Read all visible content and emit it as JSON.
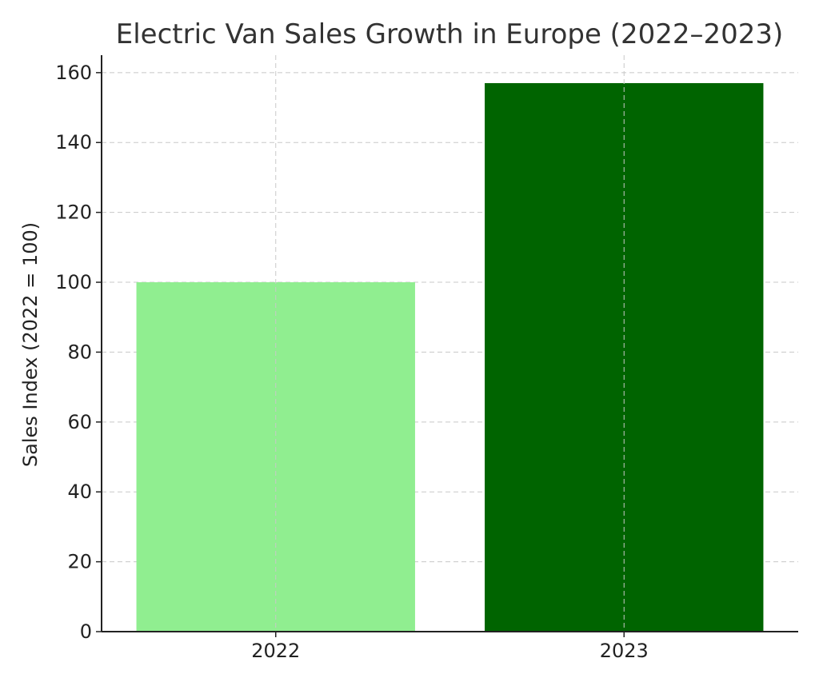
{
  "chart_data": {
    "type": "bar",
    "title": "Electric Van Sales Growth in Europe (2022–2023)",
    "xlabel": "",
    "ylabel": "Sales Index (2022 = 100)",
    "categories": [
      "2022",
      "2023"
    ],
    "values": [
      100,
      157
    ],
    "colors": [
      "#90ee90",
      "#006400"
    ],
    "ylim": [
      0,
      165
    ],
    "yticks": [
      0,
      20,
      40,
      60,
      80,
      100,
      120,
      140,
      160
    ],
    "grid": true,
    "legend": "none"
  }
}
